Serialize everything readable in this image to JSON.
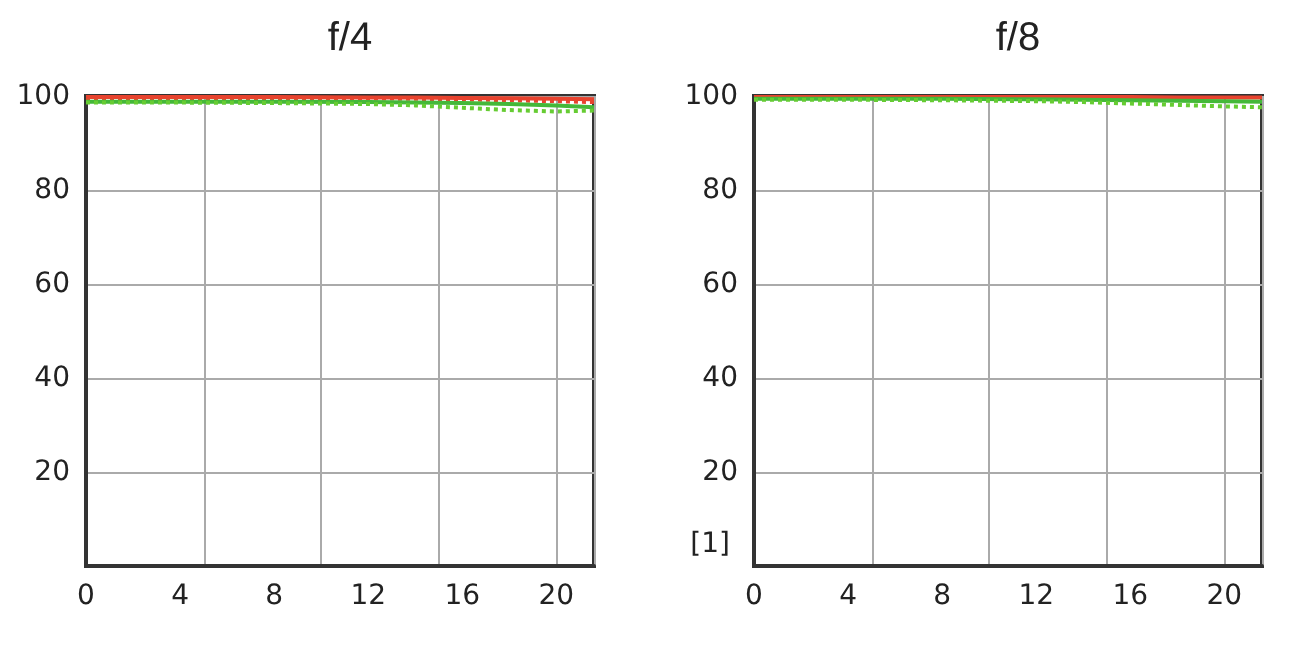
{
  "chart_data": [
    {
      "type": "line",
      "title": "f/4",
      "x": [
        0,
        4,
        8,
        12,
        14,
        16,
        18,
        20,
        21.6
      ],
      "xlim": [
        0,
        21.6
      ],
      "xticks": [
        0,
        4,
        8,
        12,
        16,
        20
      ],
      "ylim": [
        0,
        100
      ],
      "yticks": [
        20,
        40,
        60,
        80,
        100
      ],
      "grid": true,
      "marker": "none",
      "series": [
        {
          "color": "#e8432e",
          "values": [
            99.8,
            99.8,
            99.8,
            99.7,
            99.7,
            99.6,
            99.5,
            99.4,
            99.3
          ]
        },
        {
          "color": "#e8432e",
          "line_style": "dotted",
          "values": [
            99.6,
            99.6,
            99.6,
            99.5,
            99.4,
            99.3,
            99.1,
            98.9,
            98.7
          ]
        },
        {
          "color": "#44b839",
          "values": [
            98.8,
            98.8,
            98.8,
            98.7,
            98.6,
            98.5,
            98.3,
            98.0,
            97.6
          ]
        },
        {
          "color": "#66cc33",
          "line_style": "dotted",
          "values": [
            98.6,
            98.6,
            98.5,
            98.3,
            98.0,
            97.5,
            97.0,
            96.7,
            96.9
          ]
        }
      ]
    },
    {
      "type": "line",
      "title": "f/8",
      "ylabel": "[1]",
      "x": [
        0,
        4,
        8,
        12,
        14,
        16,
        18,
        20,
        21.6
      ],
      "xlim": [
        0,
        21.6
      ],
      "xticks": [
        0,
        4,
        8,
        12,
        16,
        20
      ],
      "ylim": [
        0,
        100
      ],
      "yticks": [
        20,
        40,
        60,
        80,
        100
      ],
      "grid": true,
      "marker": "none",
      "series": [
        {
          "color": "#e8432e",
          "values": [
            99.8,
            99.8,
            99.8,
            99.8,
            99.8,
            99.8,
            99.7,
            99.7,
            99.7
          ]
        },
        {
          "color": "#44b839",
          "values": [
            99.4,
            99.4,
            99.4,
            99.3,
            99.2,
            99.1,
            99.0,
            98.9,
            98.8
          ]
        },
        {
          "color": "#66cc33",
          "line_style": "dotted",
          "values": [
            99.2,
            99.2,
            99.1,
            98.9,
            98.7,
            98.4,
            98.1,
            97.8,
            97.6
          ]
        }
      ]
    }
  ]
}
